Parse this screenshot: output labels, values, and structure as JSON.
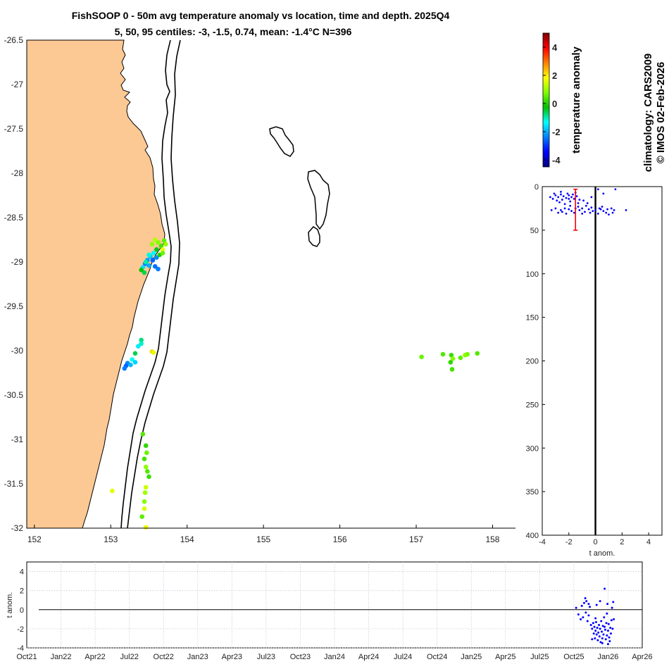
{
  "header": {
    "title_line1": "FishSOOP 0 - 50m avg temperature anomaly vs location, time and depth. 2025Q4",
    "title_line2": "5, 50, 95 centiles: -3, -1.5, 0.74, mean: -1.4°C N=396"
  },
  "side_text": {
    "climatology": "climatology: CARS2009",
    "copyright": "© IMOS 02-Feb-2026"
  },
  "colorbar": {
    "label": "temperature anomaly",
    "range": [
      -4.5,
      5
    ],
    "ticks": [
      4,
      2,
      0,
      -2,
      -4
    ],
    "tick_labels": [
      "4",
      "2",
      "0",
      "-2",
      "-4"
    ],
    "colors": [
      "#00007f",
      "#0000ff",
      "#007fff",
      "#00ffff",
      "#00c000",
      "#7fff00",
      "#ffff00",
      "#ff7f00",
      "#ff0000",
      "#7f0000"
    ]
  },
  "chart_data": [
    {
      "type": "scatter",
      "name": "location_map",
      "title": "FishSOOP 0 - 50m avg temperature anomaly vs location, time and depth. 2025Q4",
      "xlim": [
        151.9,
        158.3
      ],
      "ylim": [
        -32,
        -26.5
      ],
      "xticks": [
        152,
        153,
        154,
        155,
        156,
        157,
        158
      ],
      "xtick_labels": [
        "152",
        "153",
        "154",
        "155",
        "156",
        "157",
        "158"
      ],
      "yticks": [
        -26.5,
        -27,
        -27.5,
        -28,
        -28.5,
        -29,
        -29.5,
        -30,
        -30.5,
        -31,
        -31.5,
        -32
      ],
      "ytick_labels": [
        "-26.5",
        "-27",
        "-27.5",
        "-28",
        "-28.5",
        "-29",
        "-29.5",
        "-30",
        "-30.5",
        "-31",
        "-31.5",
        "-32"
      ],
      "land_color": "#fcc994",
      "points": [
        {
          "lon": 153.58,
          "lat": -28.75,
          "anom": 1.2
        },
        {
          "lon": 153.62,
          "lat": -28.78,
          "anom": 0.8
        },
        {
          "lon": 153.66,
          "lat": -28.82,
          "anom": 0.3
        },
        {
          "lon": 153.7,
          "lat": -28.76,
          "anom": 0.5
        },
        {
          "lon": 153.68,
          "lat": -28.86,
          "anom": 1.6
        },
        {
          "lon": 153.6,
          "lat": -28.86,
          "anom": -0.4
        },
        {
          "lon": 153.56,
          "lat": -28.9,
          "anom": -1.4
        },
        {
          "lon": 153.52,
          "lat": -28.94,
          "anom": -1.8
        },
        {
          "lon": 153.48,
          "lat": -28.98,
          "anom": -2.2
        },
        {
          "lon": 153.45,
          "lat": -29.02,
          "anom": -2.4
        },
        {
          "lon": 153.42,
          "lat": -29.06,
          "anom": -1.6
        },
        {
          "lon": 153.46,
          "lat": -29.0,
          "anom": -1.0
        },
        {
          "lon": 153.5,
          "lat": -29.04,
          "anom": -2.0
        },
        {
          "lon": 153.55,
          "lat": -28.98,
          "anom": -2.6
        },
        {
          "lon": 153.6,
          "lat": -28.95,
          "anom": -2.3
        },
        {
          "lon": 153.64,
          "lat": -28.92,
          "anom": 0.0
        },
        {
          "lon": 153.68,
          "lat": -28.9,
          "anom": 0.6
        },
        {
          "lon": 153.58,
          "lat": -29.05,
          "anom": -2.5
        },
        {
          "lon": 153.62,
          "lat": -29.08,
          "anom": -2.4
        },
        {
          "lon": 153.44,
          "lat": -29.12,
          "anom": -0.6
        },
        {
          "lon": 153.4,
          "lat": -29.09,
          "anom": -0.2
        },
        {
          "lon": 153.54,
          "lat": -28.8,
          "anom": 0.9
        },
        {
          "lon": 153.72,
          "lat": -28.8,
          "anom": 1.0
        },
        {
          "lon": 153.5,
          "lat": -28.92,
          "anom": -1.2
        },
        {
          "lon": 153.4,
          "lat": -29.88,
          "anom": -0.8
        },
        {
          "lon": 153.36,
          "lat": -29.95,
          "anom": -1.5
        },
        {
          "lon": 153.32,
          "lat": -30.03,
          "anom": -0.6
        },
        {
          "lon": 153.4,
          "lat": -29.92,
          "anom": -1.1
        },
        {
          "lon": 153.28,
          "lat": -30.1,
          "anom": -1.3
        },
        {
          "lon": 153.32,
          "lat": -30.13,
          "anom": -1.7
        },
        {
          "lon": 153.22,
          "lat": -30.14,
          "anom": -2.3
        },
        {
          "lon": 153.2,
          "lat": -30.17,
          "anom": -2.6
        },
        {
          "lon": 153.18,
          "lat": -30.2,
          "anom": -2.4
        },
        {
          "lon": 153.26,
          "lat": -30.16,
          "anom": -1.9
        },
        {
          "lon": 153.54,
          "lat": -30.01,
          "anom": 2.2
        },
        {
          "lon": 153.56,
          "lat": -30.02,
          "anom": 1.6
        },
        {
          "lon": 153.42,
          "lat": -30.94,
          "anom": 0.4
        },
        {
          "lon": 153.46,
          "lat": -31.07,
          "anom": 0.1
        },
        {
          "lon": 153.47,
          "lat": -31.15,
          "anom": 0.6
        },
        {
          "lon": 153.44,
          "lat": -31.22,
          "anom": 0.3
        },
        {
          "lon": 153.46,
          "lat": -31.31,
          "anom": 0.9
        },
        {
          "lon": 153.48,
          "lat": -31.36,
          "anom": 0.4
        },
        {
          "lon": 153.5,
          "lat": -31.42,
          "anom": 0.2
        },
        {
          "lon": 153.46,
          "lat": -31.54,
          "anom": 1.4
        },
        {
          "lon": 153.45,
          "lat": -31.6,
          "anom": 1.0
        },
        {
          "lon": 153.44,
          "lat": -31.7,
          "anom": 0.8
        },
        {
          "lon": 153.44,
          "lat": -31.78,
          "anom": 1.5
        },
        {
          "lon": 153.41,
          "lat": -31.87,
          "anom": 0.5
        },
        {
          "lon": 153.46,
          "lat": -31.99,
          "anom": 1.7
        },
        {
          "lon": 153.02,
          "lat": -31.58,
          "anom": 1.6
        },
        {
          "lon": 157.07,
          "lat": -30.07,
          "anom": 0.6
        },
        {
          "lon": 157.35,
          "lat": -30.04,
          "anom": 0.4
        },
        {
          "lon": 157.46,
          "lat": -30.05,
          "anom": 0.2
        },
        {
          "lon": 157.48,
          "lat": -30.09,
          "anom": 0.8
        },
        {
          "lon": 157.45,
          "lat": -30.13,
          "anom": 0.1
        },
        {
          "lon": 157.47,
          "lat": -30.21,
          "anom": 0.3
        },
        {
          "lon": 157.58,
          "lat": -30.08,
          "anom": 0.5
        },
        {
          "lon": 157.64,
          "lat": -30.05,
          "anom": 0.9
        },
        {
          "lon": 157.67,
          "lat": -30.04,
          "anom": 0.7
        },
        {
          "lon": 157.8,
          "lat": -30.03,
          "anom": 0.4
        }
      ]
    },
    {
      "type": "scatter",
      "name": "depth_profile",
      "xlabel": "t anom.",
      "xlim": [
        -4,
        5
      ],
      "ylim": [
        0,
        400
      ],
      "y_reversed": true,
      "xticks": [
        -4,
        -2,
        0,
        2,
        4
      ],
      "xtick_labels": [
        "-4",
        "-2",
        "0",
        "2",
        "4"
      ],
      "yticks": [
        0,
        50,
        100,
        150,
        200,
        250,
        300,
        350,
        400
      ],
      "ytick_labels": [
        "0",
        "50",
        "100",
        "150",
        "200",
        "250",
        "300",
        "350",
        "400"
      ],
      "zero_line": 0,
      "errorbar": {
        "x": -1.5,
        "ymin": 3,
        "ymax": 50
      },
      "points": [
        {
          "x": -3.0,
          "y": 10
        },
        {
          "x": -2.8,
          "y": 12
        },
        {
          "x": -2.6,
          "y": 9
        },
        {
          "x": -2.4,
          "y": 11
        },
        {
          "x": -2.2,
          "y": 13
        },
        {
          "x": -2.0,
          "y": 10
        },
        {
          "x": -1.8,
          "y": 12
        },
        {
          "x": -1.6,
          "y": 14
        },
        {
          "x": -1.4,
          "y": 11
        },
        {
          "x": -1.2,
          "y": 15
        },
        {
          "x": -3.2,
          "y": 14
        },
        {
          "x": -2.9,
          "y": 16
        },
        {
          "x": -2.5,
          "y": 15
        },
        {
          "x": -2.1,
          "y": 8
        },
        {
          "x": -1.9,
          "y": 17
        },
        {
          "x": -2.7,
          "y": 18
        },
        {
          "x": -3.4,
          "y": 12
        },
        {
          "x": -1.3,
          "y": 19
        },
        {
          "x": -2.3,
          "y": 20
        },
        {
          "x": -1.7,
          "y": 9
        },
        {
          "x": -0.9,
          "y": 16
        },
        {
          "x": -0.6,
          "y": 19
        },
        {
          "x": 0.2,
          "y": 3
        },
        {
          "x": 1.5,
          "y": 3
        },
        {
          "x": 0.6,
          "y": 8
        },
        {
          "x": -0.3,
          "y": 12
        },
        {
          "x": -3.1,
          "y": 8
        },
        {
          "x": -2.6,
          "y": 6
        },
        {
          "x": -1.5,
          "y": 7
        },
        {
          "x": -2.0,
          "y": 14
        },
        {
          "x": -3.0,
          "y": 25
        },
        {
          "x": -2.6,
          "y": 27
        },
        {
          "x": -2.3,
          "y": 25
        },
        {
          "x": -2.0,
          "y": 26
        },
        {
          "x": -1.8,
          "y": 28
        },
        {
          "x": -1.5,
          "y": 25
        },
        {
          "x": -1.2,
          "y": 27
        },
        {
          "x": -1.0,
          "y": 25
        },
        {
          "x": -0.8,
          "y": 29
        },
        {
          "x": -0.5,
          "y": 26
        },
        {
          "x": -0.3,
          "y": 24
        },
        {
          "x": 0.0,
          "y": 27
        },
        {
          "x": 0.3,
          "y": 25
        },
        {
          "x": 0.6,
          "y": 28
        },
        {
          "x": 0.9,
          "y": 26
        },
        {
          "x": 1.2,
          "y": 25
        },
        {
          "x": 1.4,
          "y": 27
        },
        {
          "x": 2.3,
          "y": 27
        },
        {
          "x": -2.8,
          "y": 30
        },
        {
          "x": -2.2,
          "y": 31
        },
        {
          "x": -1.6,
          "y": 30
        },
        {
          "x": -1.0,
          "y": 31
        },
        {
          "x": -0.4,
          "y": 30
        },
        {
          "x": 0.2,
          "y": 31
        },
        {
          "x": 0.8,
          "y": 30
        },
        {
          "x": 1.0,
          "y": 32
        },
        {
          "x": -1.9,
          "y": 22
        },
        {
          "x": -0.7,
          "y": 22
        },
        {
          "x": 0.5,
          "y": 23
        },
        {
          "x": -2.5,
          "y": 29
        },
        {
          "x": 1.3,
          "y": 30
        },
        {
          "x": -0.2,
          "y": 28
        },
        {
          "x": 0.4,
          "y": 26
        },
        {
          "x": -1.3,
          "y": 23
        },
        {
          "x": -3.3,
          "y": 27
        }
      ]
    },
    {
      "type": "scatter",
      "name": "time_series",
      "ylabel": "t anom.",
      "ylim": [
        -4,
        5
      ],
      "yticks": [
        4,
        2,
        0,
        -2,
        -4
      ],
      "ytick_labels": [
        "4",
        "2",
        "0",
        "-2",
        "-4"
      ],
      "x_months_from_oct21": [
        0,
        54
      ],
      "xticks": [
        0,
        3,
        6,
        9,
        12,
        15,
        18,
        21,
        24,
        27,
        30,
        33,
        36,
        39,
        42,
        45,
        48,
        51,
        54
      ],
      "xtick_labels": [
        "Oct21",
        "Jan22",
        "Apr22",
        "Jul22",
        "Oct22",
        "Jan23",
        "Apr23",
        "Jul23",
        "Oct23",
        "Jan24",
        "Apr24",
        "Jul24",
        "Oct24",
        "Jan25",
        "Apr25",
        "Jul25",
        "Oct25",
        "Jan26",
        "Apr26"
      ],
      "zero_line": 0,
      "points": [
        {
          "t": 48.2,
          "y": 0.2
        },
        {
          "t": 48.4,
          "y": -0.5
        },
        {
          "t": 48.6,
          "y": -1.0
        },
        {
          "t": 48.7,
          "y": 0.4
        },
        {
          "t": 48.8,
          "y": -0.8
        },
        {
          "t": 48.9,
          "y": 0.7
        },
        {
          "t": 49.0,
          "y": 1.2
        },
        {
          "t": 49.05,
          "y": -0.3
        },
        {
          "t": 49.1,
          "y": 0.9
        },
        {
          "t": 49.2,
          "y": -1.2
        },
        {
          "t": 49.3,
          "y": -0.6
        },
        {
          "t": 49.4,
          "y": 0.3
        },
        {
          "t": 49.5,
          "y": -1.6
        },
        {
          "t": 49.6,
          "y": -2.0
        },
        {
          "t": 49.7,
          "y": -1.4
        },
        {
          "t": 49.75,
          "y": -2.5
        },
        {
          "t": 49.8,
          "y": -1.8
        },
        {
          "t": 49.85,
          "y": -3.0
        },
        {
          "t": 49.9,
          "y": -2.2
        },
        {
          "t": 49.95,
          "y": -1.3
        },
        {
          "t": 50.0,
          "y": -2.6
        },
        {
          "t": 50.05,
          "y": -1.9
        },
        {
          "t": 50.1,
          "y": -3.2
        },
        {
          "t": 50.15,
          "y": -2.4
        },
        {
          "t": 50.2,
          "y": -1.6
        },
        {
          "t": 50.25,
          "y": -2.8
        },
        {
          "t": 50.3,
          "y": -2.0
        },
        {
          "t": 50.35,
          "y": -3.4
        },
        {
          "t": 50.4,
          "y": -1.2
        },
        {
          "t": 50.45,
          "y": -2.3
        },
        {
          "t": 50.5,
          "y": -3.0
        },
        {
          "t": 50.55,
          "y": -1.7
        },
        {
          "t": 50.6,
          "y": -2.6
        },
        {
          "t": 50.65,
          "y": -0.8
        },
        {
          "t": 50.7,
          "y": 2.2
        },
        {
          "t": 50.75,
          "y": -2.1
        },
        {
          "t": 50.8,
          "y": -3.1
        },
        {
          "t": 50.85,
          "y": -1.4
        },
        {
          "t": 50.9,
          "y": -2.7
        },
        {
          "t": 50.95,
          "y": 0.6
        },
        {
          "t": 51.0,
          "y": -2.2
        },
        {
          "t": 51.05,
          "y": -1.5
        },
        {
          "t": 51.1,
          "y": -2.9
        },
        {
          "t": 51.15,
          "y": -3.3
        },
        {
          "t": 51.2,
          "y": -1.9
        },
        {
          "t": 51.25,
          "y": -2.5
        },
        {
          "t": 51.3,
          "y": -1.1
        },
        {
          "t": 51.35,
          "y": 0.2
        },
        {
          "t": 51.4,
          "y": -2.0
        },
        {
          "t": 51.45,
          "y": 0.8
        },
        {
          "t": 51.5,
          "y": -1.0
        },
        {
          "t": 50.0,
          "y": 0.5
        },
        {
          "t": 49.3,
          "y": 0.6
        },
        {
          "t": 50.3,
          "y": 0.9
        },
        {
          "t": 50.9,
          "y": -0.4
        },
        {
          "t": 49.6,
          "y": -3.1
        },
        {
          "t": 50.5,
          "y": -3.5
        },
        {
          "t": 51.0,
          "y": -3.6
        },
        {
          "t": 49.9,
          "y": -0.9
        },
        {
          "t": 50.7,
          "y": -1.8
        }
      ]
    }
  ]
}
